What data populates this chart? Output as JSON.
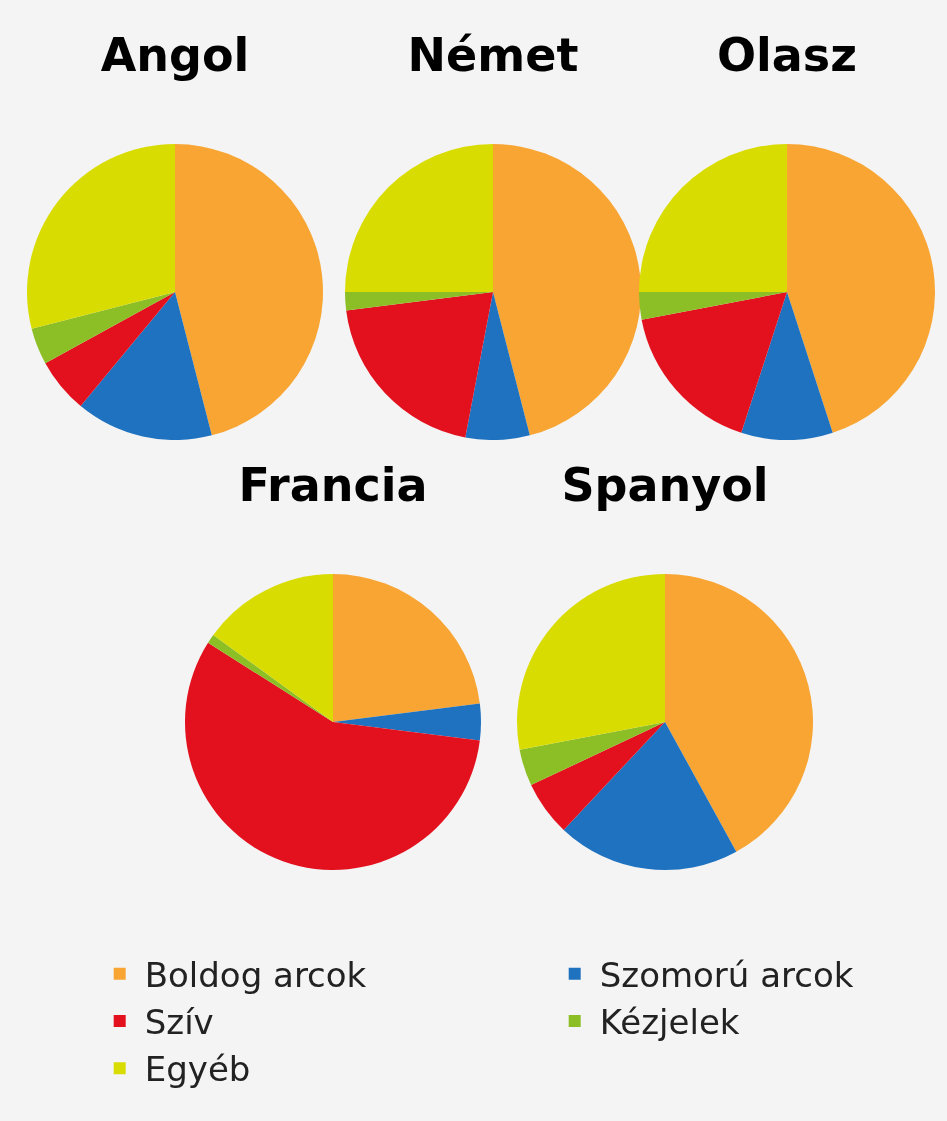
{
  "chart_data": [
    {
      "type": "pie",
      "title": "Angol",
      "categories": [
        null,
        null,
        null,
        null,
        null
      ],
      "values": [
        46,
        15,
        6,
        4,
        29
      ],
      "colors": [
        "#f9a533",
        "#1f72bf",
        "#e3101e",
        "#8cbf26",
        "#d9dc00"
      ]
    },
    {
      "type": "pie",
      "title": "Német",
      "categories": [
        null,
        null,
        null,
        null,
        null
      ],
      "values": [
        46,
        7,
        20,
        2,
        25
      ],
      "colors": [
        "#f9a533",
        "#1f72bf",
        "#e3101e",
        "#8cbf26",
        "#d9dc00"
      ]
    },
    {
      "type": "pie",
      "title": "Olasz",
      "categories": [
        null,
        null,
        null,
        null,
        null
      ],
      "values": [
        45,
        10,
        17,
        3,
        25
      ],
      "colors": [
        "#f9a533",
        "#1f72bf",
        "#e3101e",
        "#8cbf26",
        "#d9dc00"
      ]
    },
    {
      "type": "pie",
      "title": "Francia",
      "categories": [
        null,
        null,
        null,
        null,
        null
      ],
      "values": [
        23,
        4,
        57,
        1,
        15
      ],
      "colors": [
        "#f9a533",
        "#1f72bf",
        "#e3101e",
        "#8cbf26",
        "#d9dc00"
      ]
    },
    {
      "type": "pie",
      "title": "Spanyol",
      "categories": [
        "Boldog arcok",
        "Szomorú arcok",
        "Szív",
        "Kézjelek",
        "Egyéb"
      ],
      "values": [
        42,
        20,
        6,
        4,
        28
      ],
      "colors": [
        "#f9a533",
        "#1f72bf",
        "#e3101e",
        "#8cbf26",
        "#d9dc00"
      ],
      "legend": "bottom"
    }
  ]
}
